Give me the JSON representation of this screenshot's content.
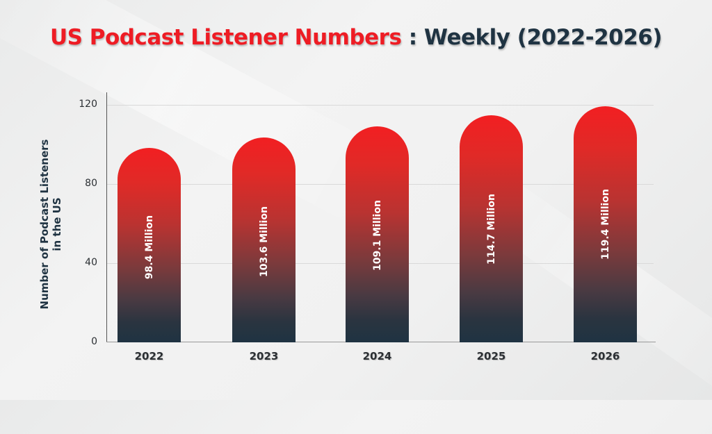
{
  "title": {
    "highlight": "US Podcast Listener Numbers",
    "separator": " : ",
    "rest": "Weekly (2022-2026)"
  },
  "colors": {
    "title_red": "#ee1c24",
    "title_dark": "#1f3342",
    "bar_top": "#f21f22",
    "bar_bottom": "#1f3342"
  },
  "chart_data": {
    "type": "bar",
    "title": "US Podcast Listener Numbers : Weekly (2022-2026)",
    "xlabel": "",
    "ylabel": "Number of Podcast Listeners in the US",
    "categories": [
      "2022",
      "2023",
      "2024",
      "2025",
      "2026"
    ],
    "values": [
      98.4,
      103.6,
      109.1,
      114.7,
      119.4
    ],
    "data_labels": [
      "98.4 Million",
      "103.6 Million",
      "109.1 Million",
      "114.7 Million",
      "119.4 Million"
    ],
    "units": "Million",
    "ylim": [
      0,
      120
    ],
    "yticks": [
      "0",
      "40",
      "80",
      "120"
    ],
    "grid": true,
    "legend": null
  },
  "axis": {
    "ylabel_line1": "Number of Podcast Listeners",
    "ylabel_line2": "in the US"
  }
}
